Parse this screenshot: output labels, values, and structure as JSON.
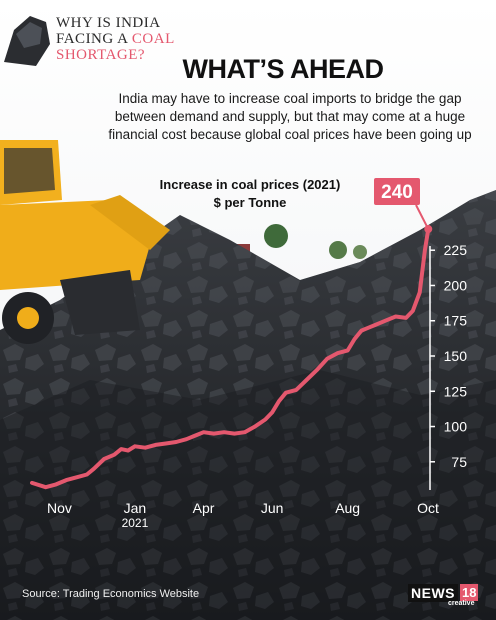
{
  "header": {
    "kicker_line1": "WHY IS INDIA",
    "kicker_line2a": "FACING A ",
    "kicker_line2b": "COAL",
    "kicker_line3": "SHORTAGE?",
    "headline": "WHAT’S AHEAD",
    "subtitle": "India may have to increase coal imports to bridge the gap between demand and supply, but that may come at a huge financial cost because global coal prices have been going up"
  },
  "colors": {
    "accent": "#e4586e",
    "text": "#111111",
    "axis_text": "#ffffff"
  },
  "chart_data": {
    "type": "line",
    "title": "Increase in coal prices (2021)",
    "ylabel": "$ per Tonne",
    "callout": "240",
    "x_ticks": [
      {
        "x": 0.8,
        "label": "Nov"
      },
      {
        "x": 3.0,
        "label": "Jan",
        "sub": "2021"
      },
      {
        "x": 5.0,
        "label": "Apr"
      },
      {
        "x": 7.0,
        "label": "Jun"
      },
      {
        "x": 9.2,
        "label": "Aug"
      },
      {
        "x": 11.5,
        "label": "Oct"
      }
    ],
    "y_ticks": [
      75,
      100,
      125,
      150,
      175,
      200,
      225
    ],
    "xlim": [
      0,
      11.6
    ],
    "ylim": [
      55,
      245
    ],
    "points": [
      [
        0.0,
        60
      ],
      [
        0.4,
        57
      ],
      [
        0.7,
        59
      ],
      [
        1.0,
        62
      ],
      [
        1.3,
        64
      ],
      [
        1.6,
        66
      ],
      [
        1.8,
        70
      ],
      [
        2.1,
        77
      ],
      [
        2.4,
        80
      ],
      [
        2.6,
        84
      ],
      [
        2.8,
        83
      ],
      [
        3.0,
        86
      ],
      [
        3.3,
        85
      ],
      [
        3.6,
        87
      ],
      [
        3.9,
        88
      ],
      [
        4.2,
        89
      ],
      [
        4.5,
        91
      ],
      [
        4.8,
        94
      ],
      [
        5.0,
        96
      ],
      [
        5.3,
        95
      ],
      [
        5.6,
        96
      ],
      [
        5.9,
        95
      ],
      [
        6.2,
        96
      ],
      [
        6.5,
        100
      ],
      [
        6.8,
        105
      ],
      [
        7.0,
        110
      ],
      [
        7.2,
        118
      ],
      [
        7.4,
        124
      ],
      [
        7.7,
        126
      ],
      [
        8.0,
        133
      ],
      [
        8.3,
        140
      ],
      [
        8.6,
        148
      ],
      [
        8.9,
        152
      ],
      [
        9.2,
        154
      ],
      [
        9.4,
        162
      ],
      [
        9.6,
        168
      ],
      [
        9.8,
        170
      ],
      [
        10.0,
        172
      ],
      [
        10.3,
        175
      ],
      [
        10.6,
        178
      ],
      [
        10.9,
        177
      ],
      [
        11.1,
        182
      ],
      [
        11.3,
        195
      ],
      [
        11.45,
        225
      ],
      [
        11.55,
        240
      ]
    ]
  },
  "source": "Source: Trading Economics Website",
  "logo": {
    "name": "NEWS",
    "num": "18",
    "sub": "creative"
  }
}
